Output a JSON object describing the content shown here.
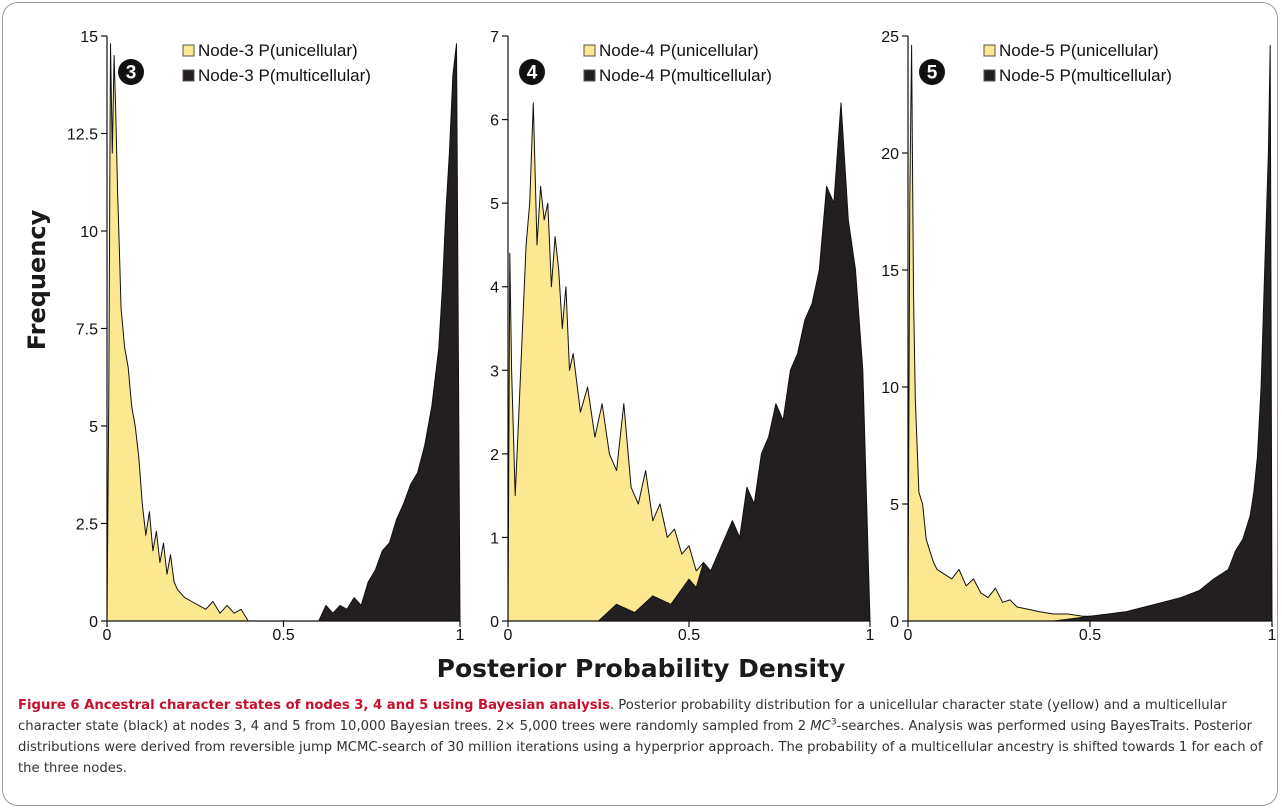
{
  "figure": {
    "ylabel": "Frequency",
    "xlabel": "Posterior Probability Density",
    "caption": {
      "label": "Figure 6 Ancestral character states of nodes 3, 4 and 5 using Bayesian analysis",
      "text1": ". Posterior probability distribution for a unicellular character state (yellow) and a multicellular character state (black) at nodes 3, 4 and 5 from 10,000 Bayesian trees. 2× 5,000 trees were randomly sampled from 2 ",
      "mc": "MC",
      "sup": "3",
      "text2": "-searches. Analysis was performed using BayesTraits. Posterior distributions were derived from reversible jump MCMC-search of 30 million iterations using a hyperprior approach. The probability of a multicellular ancestry is shifted towards 1 for each of the three nodes."
    }
  },
  "colors": {
    "unicellular": "#fbe890",
    "multicellular": "#231f20",
    "outline": "#111111"
  },
  "chart_data": [
    {
      "type": "area",
      "node_badge": "3",
      "ylim": [
        0,
        15
      ],
      "xlim": [
        0,
        1
      ],
      "yticks": [
        "0",
        "2.5",
        "5",
        "7.5",
        "10",
        "12.5",
        "15"
      ],
      "xticks": [
        "0",
        "0.5",
        "1"
      ],
      "legend_position": "top-right",
      "series": [
        {
          "name": "Node-3 P(unicellular)",
          "color": "#fbe890",
          "x": [
            0,
            0.005,
            0.01,
            0.015,
            0.02,
            0.025,
            0.03,
            0.035,
            0.04,
            0.05,
            0.06,
            0.07,
            0.08,
            0.09,
            0.1,
            0.11,
            0.12,
            0.13,
            0.14,
            0.15,
            0.16,
            0.17,
            0.18,
            0.19,
            0.2,
            0.22,
            0.24,
            0.26,
            0.28,
            0.3,
            0.32,
            0.34,
            0.36,
            0.38,
            0.4
          ],
          "values": [
            0,
            5.8,
            14.8,
            12.0,
            14.5,
            13.0,
            11.0,
            9.5,
            8.0,
            7.0,
            6.5,
            5.5,
            5.0,
            4.2,
            3.0,
            2.2,
            2.8,
            1.8,
            2.3,
            1.5,
            2.0,
            1.2,
            1.7,
            1.0,
            0.8,
            0.6,
            0.5,
            0.4,
            0.3,
            0.5,
            0.2,
            0.4,
            0.2,
            0.3,
            0
          ]
        },
        {
          "name": "Node-3 P(multicellular)",
          "color": "#231f20",
          "x": [
            0.6,
            0.62,
            0.64,
            0.66,
            0.68,
            0.7,
            0.72,
            0.74,
            0.76,
            0.78,
            0.8,
            0.82,
            0.84,
            0.86,
            0.88,
            0.9,
            0.92,
            0.94,
            0.95,
            0.96,
            0.97,
            0.98,
            0.99,
            1.0
          ],
          "values": [
            0,
            0.4,
            0.2,
            0.4,
            0.3,
            0.6,
            0.4,
            1.0,
            1.3,
            1.8,
            2.0,
            2.6,
            3.0,
            3.5,
            3.8,
            4.5,
            5.5,
            7.0,
            8.5,
            10.5,
            12.0,
            14.0,
            14.8,
            0
          ]
        }
      ]
    },
    {
      "type": "area",
      "node_badge": "4",
      "ylim": [
        0,
        7
      ],
      "xlim": [
        0,
        1
      ],
      "yticks": [
        "0",
        "1",
        "2",
        "3",
        "4",
        "5",
        "6",
        "7"
      ],
      "xticks": [
        "0",
        "0.5",
        "1"
      ],
      "legend_position": "top-right",
      "series": [
        {
          "name": "Node-4 P(unicellular)",
          "color": "#fbe890",
          "x": [
            0,
            0.005,
            0.01,
            0.02,
            0.03,
            0.04,
            0.05,
            0.06,
            0.07,
            0.08,
            0.09,
            0.1,
            0.11,
            0.12,
            0.13,
            0.14,
            0.15,
            0.16,
            0.17,
            0.18,
            0.2,
            0.22,
            0.24,
            0.26,
            0.28,
            0.3,
            0.32,
            0.34,
            0.36,
            0.38,
            0.4,
            0.42,
            0.44,
            0.46,
            0.48,
            0.5,
            0.52,
            0.54,
            0.56,
            0.58,
            0.6,
            0.62,
            0.64,
            0.66,
            0.68,
            0.7
          ],
          "values": [
            0,
            4.4,
            3.0,
            1.5,
            2.5,
            3.5,
            4.5,
            5.0,
            6.2,
            4.5,
            5.2,
            4.8,
            5.0,
            4.0,
            4.6,
            4.2,
            3.5,
            4.0,
            3.0,
            3.2,
            2.5,
            2.8,
            2.2,
            2.6,
            2.0,
            1.8,
            2.6,
            1.6,
            1.4,
            1.8,
            1.2,
            1.4,
            1.0,
            1.1,
            0.8,
            0.9,
            0.6,
            0.7,
            0.5,
            0.4,
            0.5,
            0.3,
            0.4,
            0.2,
            0.3,
            0
          ]
        },
        {
          "name": "Node-4 P(multicellular)",
          "color": "#231f20",
          "x": [
            0.25,
            0.3,
            0.35,
            0.4,
            0.45,
            0.5,
            0.52,
            0.54,
            0.56,
            0.58,
            0.6,
            0.62,
            0.64,
            0.66,
            0.68,
            0.7,
            0.72,
            0.74,
            0.76,
            0.78,
            0.8,
            0.82,
            0.84,
            0.86,
            0.88,
            0.9,
            0.92,
            0.94,
            0.96,
            0.98,
            1.0
          ],
          "values": [
            0,
            0.2,
            0.1,
            0.3,
            0.2,
            0.5,
            0.4,
            0.7,
            0.6,
            0.8,
            1.0,
            1.2,
            1.0,
            1.6,
            1.4,
            2.0,
            2.2,
            2.6,
            2.4,
            3.0,
            3.2,
            3.6,
            3.8,
            4.2,
            5.2,
            5.0,
            6.2,
            4.8,
            4.2,
            3.0,
            0
          ]
        }
      ]
    },
    {
      "type": "area",
      "node_badge": "5",
      "ylim": [
        0,
        25
      ],
      "xlim": [
        0,
        1
      ],
      "yticks": [
        "0",
        "5",
        "10",
        "15",
        "20",
        "25"
      ],
      "xticks": [
        "0",
        "0.5",
        "1"
      ],
      "legend_position": "top-right",
      "series": [
        {
          "name": "Node-5 P(unicellular)",
          "color": "#fbe890",
          "x": [
            0,
            0.005,
            0.01,
            0.015,
            0.02,
            0.03,
            0.04,
            0.05,
            0.06,
            0.07,
            0.08,
            0.1,
            0.12,
            0.14,
            0.16,
            0.18,
            0.2,
            0.22,
            0.24,
            0.26,
            0.28,
            0.3,
            0.33,
            0.36,
            0.4,
            0.44,
            0.48,
            0.52,
            0.56,
            0.6
          ],
          "values": [
            0,
            18.0,
            24.6,
            14.0,
            9.5,
            5.5,
            5.0,
            3.5,
            3.0,
            2.5,
            2.2,
            2.0,
            1.8,
            2.2,
            1.5,
            1.8,
            1.2,
            1.0,
            1.4,
            0.8,
            0.9,
            0.6,
            0.5,
            0.4,
            0.3,
            0.3,
            0.2,
            0.2,
            0.1,
            0
          ]
        },
        {
          "name": "Node-5 P(multicellular)",
          "color": "#231f20",
          "x": [
            0.4,
            0.45,
            0.5,
            0.55,
            0.6,
            0.65,
            0.7,
            0.75,
            0.8,
            0.84,
            0.88,
            0.9,
            0.92,
            0.94,
            0.95,
            0.96,
            0.97,
            0.98,
            0.99,
            0.995,
            1.0
          ],
          "values": [
            0,
            0.1,
            0.2,
            0.3,
            0.4,
            0.6,
            0.8,
            1.0,
            1.3,
            1.8,
            2.2,
            3.0,
            3.5,
            4.5,
            5.5,
            7.0,
            10.0,
            15.0,
            20.0,
            24.6,
            0
          ]
        }
      ]
    }
  ]
}
